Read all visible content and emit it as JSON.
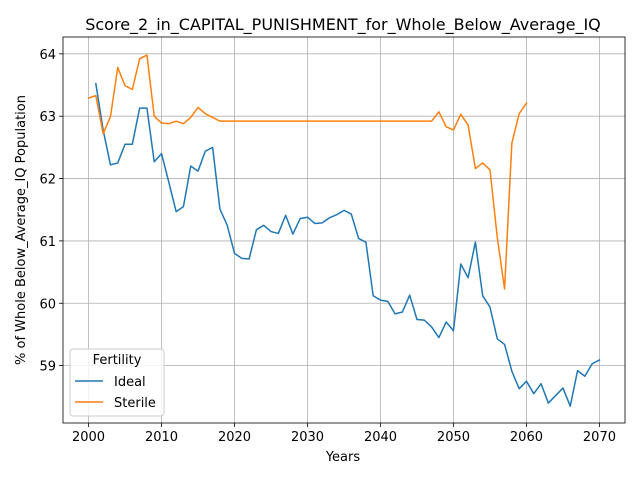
{
  "chart_data": {
    "type": "line",
    "title": "Score_2_in_CAPITAL_PUNISHMENT_for_Whole_Below_Average_IQ",
    "xlabel": "Years",
    "ylabel": "% of Whole Below_Average_IQ Population",
    "xlim": [
      1996.5,
      2073.5
    ],
    "ylim": [
      58.08,
      64.27
    ],
    "xticks": [
      2000,
      2010,
      2020,
      2030,
      2040,
      2050,
      2060,
      2070
    ],
    "yticks": [
      59,
      60,
      61,
      62,
      63,
      64
    ],
    "grid": true,
    "legend": {
      "title": "Fertility",
      "placement": "lower-left"
    },
    "series": [
      {
        "name": "Ideal",
        "color": "#1f77b4",
        "x": [
          2001,
          2002,
          2003,
          2004,
          2005,
          2006,
          2007,
          2008,
          2009,
          2010,
          2011,
          2012,
          2013,
          2014,
          2015,
          2016,
          2017,
          2018,
          2019,
          2020,
          2021,
          2022,
          2023,
          2024,
          2025,
          2026,
          2027,
          2028,
          2029,
          2030,
          2031,
          2032,
          2033,
          2034,
          2035,
          2036,
          2037,
          2038,
          2039,
          2040,
          2041,
          2042,
          2043,
          2044,
          2045,
          2046,
          2047,
          2048,
          2049,
          2050,
          2051,
          2052,
          2053,
          2054,
          2055,
          2056,
          2057,
          2058,
          2059,
          2060,
          2061,
          2062,
          2063,
          2064,
          2065,
          2066,
          2067,
          2068,
          2069,
          2070
        ],
        "y": [
          63.52,
          62.78,
          62.22,
          62.25,
          62.55,
          62.55,
          63.13,
          63.13,
          62.27,
          62.4,
          61.94,
          61.47,
          61.55,
          62.2,
          62.12,
          62.44,
          62.5,
          61.51,
          61.25,
          60.8,
          60.72,
          60.71,
          61.18,
          61.25,
          61.15,
          61.12,
          61.41,
          61.11,
          61.36,
          61.38,
          61.28,
          61.29,
          61.37,
          61.42,
          61.49,
          61.43,
          61.04,
          60.98,
          60.12,
          60.05,
          60.03,
          59.83,
          59.86,
          60.13,
          59.74,
          59.73,
          59.62,
          59.45,
          59.7,
          59.56,
          60.63,
          60.41,
          60.98,
          60.12,
          59.94,
          59.43,
          59.34,
          58.91,
          58.63,
          58.75,
          58.55,
          58.71,
          58.4,
          58.52,
          58.64,
          58.35,
          58.92,
          58.83,
          59.03,
          59.09
        ]
      },
      {
        "name": "Sterile",
        "color": "#ff7f0e",
        "x": [
          2000,
          2001,
          2002,
          2003,
          2004,
          2005,
          2006,
          2007,
          2008,
          2009,
          2010,
          2011,
          2012,
          2013,
          2014,
          2015,
          2016,
          2017,
          2018,
          2019,
          2020,
          2021,
          2022,
          2023,
          2024,
          2025,
          2026,
          2027,
          2028,
          2029,
          2030,
          2031,
          2032,
          2033,
          2034,
          2035,
          2036,
          2037,
          2038,
          2039,
          2040,
          2041,
          2042,
          2043,
          2044,
          2045,
          2046,
          2047,
          2048,
          2049,
          2050,
          2051,
          2052,
          2053,
          2054,
          2055,
          2056,
          2057,
          2058,
          2059,
          2060
        ],
        "y": [
          63.29,
          63.33,
          62.72,
          62.99,
          63.78,
          63.49,
          63.43,
          63.92,
          63.98,
          63.0,
          62.89,
          62.88,
          62.92,
          62.88,
          62.98,
          63.14,
          63.04,
          62.98,
          62.92,
          62.92,
          62.92,
          62.92,
          62.92,
          62.92,
          62.92,
          62.92,
          62.92,
          62.92,
          62.92,
          62.92,
          62.92,
          62.92,
          62.92,
          62.92,
          62.92,
          62.92,
          62.92,
          62.92,
          62.92,
          62.92,
          62.92,
          62.92,
          62.92,
          62.92,
          62.92,
          62.92,
          62.92,
          62.92,
          63.07,
          62.83,
          62.78,
          63.03,
          62.86,
          62.16,
          62.25,
          62.14,
          61.06,
          60.23,
          62.57,
          63.04,
          63.21
        ]
      }
    ]
  }
}
